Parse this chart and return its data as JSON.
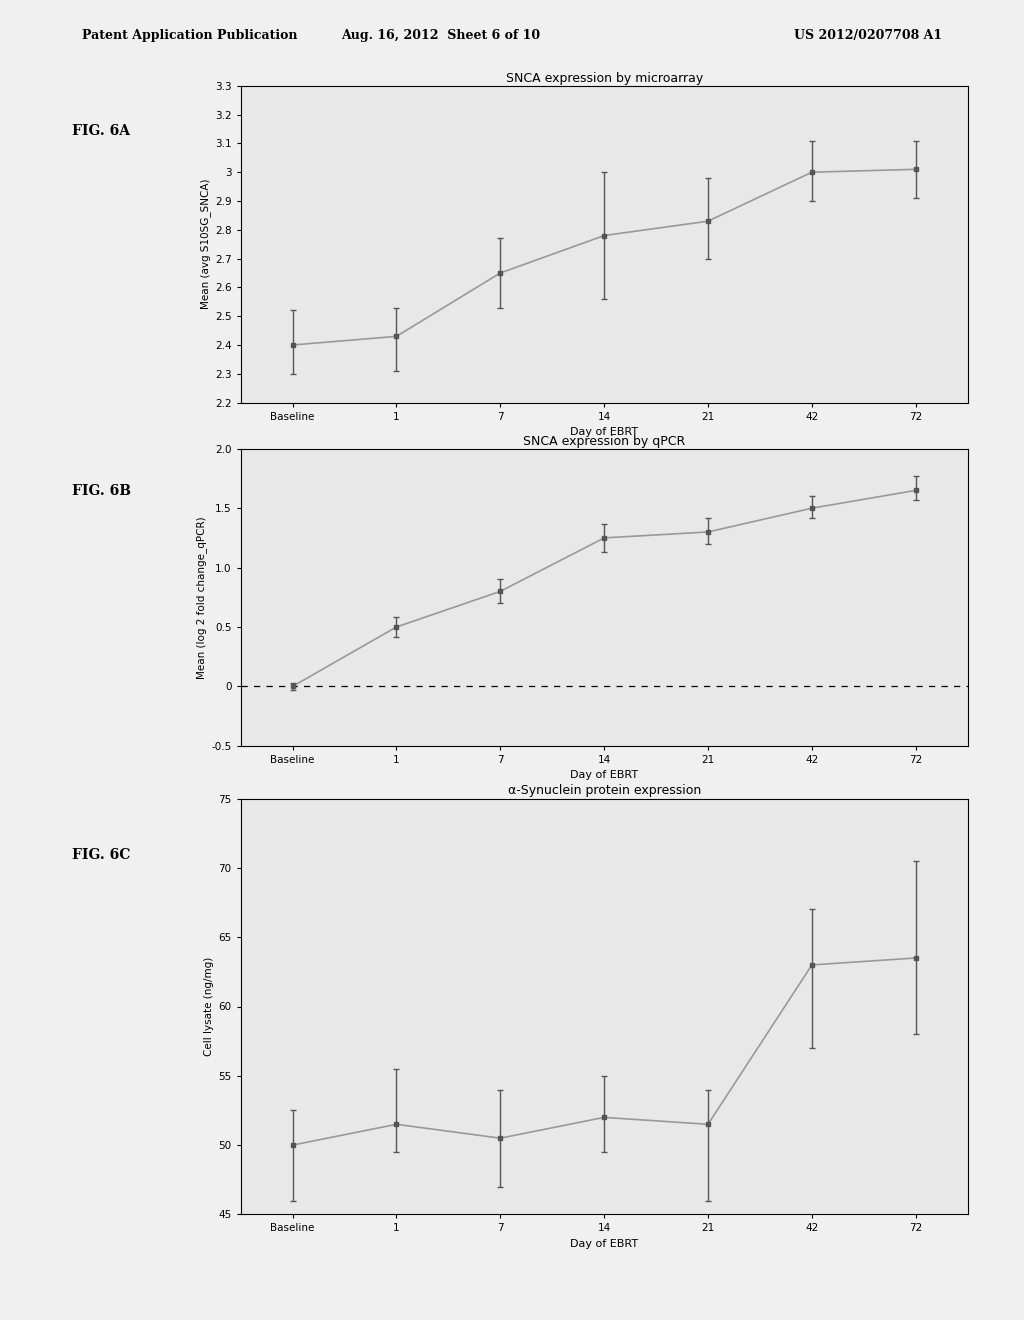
{
  "header": {
    "left": "Patent Application Publication",
    "center": "Aug. 16, 2012  Sheet 6 of 10",
    "right": "US 2012/0207708 A1"
  },
  "fig6A": {
    "label": "FIG. 6A",
    "title": "SNCA expression by microarray",
    "xlabel": "Day of EBRT",
    "ylabel": "Mean (avg S10SG_SNCA)",
    "x_labels": [
      "Baseline",
      "1",
      "7",
      "14",
      "21",
      "42",
      "72"
    ],
    "x_vals": [
      0,
      1,
      2,
      3,
      4,
      5,
      6
    ],
    "y_vals": [
      2.4,
      2.43,
      2.65,
      2.78,
      2.83,
      3.0,
      3.01
    ],
    "y_err_low": [
      0.1,
      0.12,
      0.12,
      0.22,
      0.13,
      0.1,
      0.1
    ],
    "y_err_high": [
      0.12,
      0.1,
      0.12,
      0.22,
      0.15,
      0.11,
      0.1
    ],
    "ylim": [
      2.2,
      3.3
    ],
    "yticks": [
      2.2,
      2.3,
      2.4,
      2.5,
      2.6,
      2.7,
      2.8,
      2.9,
      3.0,
      3.1,
      3.2,
      3.3
    ]
  },
  "fig6B": {
    "label": "FIG. 6B",
    "title": "SNCA expression by qPCR",
    "xlabel": "Day of EBRT",
    "ylabel": "Mean (log 2 fold change_qPCR)",
    "x_labels": [
      "Baseline",
      "1",
      "7",
      "14",
      "21",
      "42",
      "72"
    ],
    "x_vals": [
      0,
      1,
      2,
      3,
      4,
      5,
      6
    ],
    "y_vals": [
      0.0,
      0.5,
      0.8,
      1.25,
      1.3,
      1.5,
      1.65
    ],
    "y_err_low": [
      0.03,
      0.08,
      0.1,
      0.12,
      0.1,
      0.08,
      0.08
    ],
    "y_err_high": [
      0.03,
      0.08,
      0.1,
      0.12,
      0.12,
      0.1,
      0.12
    ],
    "ylim": [
      -0.5,
      2.0
    ],
    "yticks": [
      -0.5,
      0.0,
      0.5,
      1.0,
      1.5,
      2.0
    ],
    "hline_y": 0.0
  },
  "fig6C": {
    "label": "FIG. 6C",
    "title": "α-Synuclein protein expression",
    "xlabel": "Day of EBRT",
    "ylabel": "Cell lysate (ng/mg)",
    "x_labels": [
      "Baseline",
      "1",
      "7",
      "14",
      "21",
      "42",
      "72"
    ],
    "x_vals": [
      0,
      1,
      2,
      3,
      4,
      5,
      6
    ],
    "y_vals": [
      50.0,
      51.5,
      50.5,
      52.0,
      51.5,
      63.0,
      63.5
    ],
    "y_err_low": [
      4.0,
      2.0,
      3.5,
      2.5,
      5.5,
      6.0,
      5.5
    ],
    "y_err_high": [
      2.5,
      4.0,
      3.5,
      3.0,
      2.5,
      4.0,
      7.0
    ],
    "ylim": [
      45,
      75
    ],
    "yticks": [
      45,
      50,
      55,
      60,
      65,
      70,
      75
    ]
  },
  "line_color": "#999999",
  "marker_color": "#555555",
  "bg_color": "#f0f0f0",
  "plot_bg_color": "#e8e8e8"
}
